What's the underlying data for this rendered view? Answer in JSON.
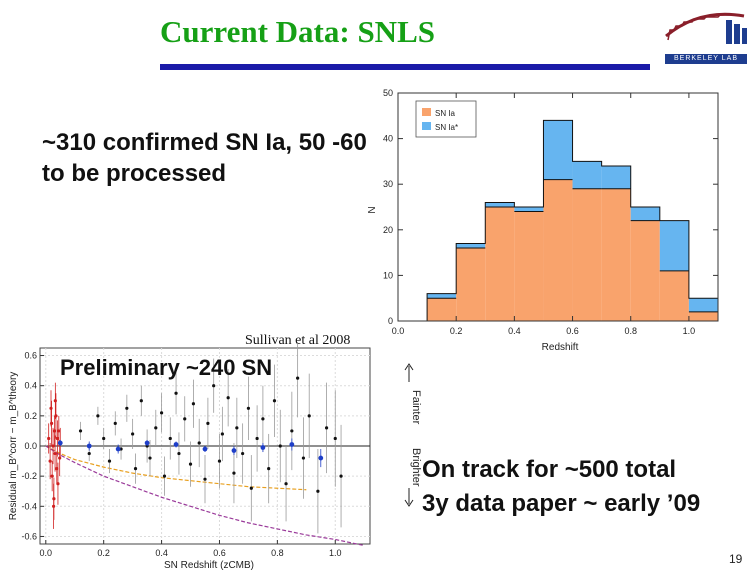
{
  "slide": {
    "title": "Current Data: SNLS",
    "logo_text": "BERKELEY LAB",
    "bullet_1": "~310 confirmed SN Ia, 50 -60 to be processed",
    "citation": "Sullivan et al 2008",
    "preliminary": "Preliminary ~240 SN",
    "bullet_2_line1": "On track for ~500 total",
    "bullet_2_line2": "3y data paper ~ early ’09",
    "page_number": "19",
    "fainter_label": "Fainter",
    "brighter_label": "Brighter"
  },
  "chart_data": [
    {
      "type": "histogram",
      "xlabel": "Redshift",
      "ylabel": "N",
      "xlim": [
        0.0,
        1.1
      ],
      "ylim": [
        0,
        50
      ],
      "xticks": [
        0.0,
        0.2,
        0.4,
        0.6,
        0.8,
        1.0
      ],
      "yticks": [
        0,
        10,
        20,
        30,
        40,
        50
      ],
      "bin_width": 0.1,
      "bin_starts": [
        0.0,
        0.1,
        0.2,
        0.3,
        0.4,
        0.5,
        0.6,
        0.7,
        0.8,
        0.9,
        1.0
      ],
      "legend_position": "top-left",
      "colors": {
        "SN Ia": "#f9a36c",
        "SN Ia*": "#66b5f0"
      },
      "series": [
        {
          "name": "SN Ia",
          "values": [
            0,
            5,
            16,
            25,
            24,
            31,
            29,
            29,
            22,
            11,
            2
          ]
        },
        {
          "name": "SN Ia*",
          "values": [
            0,
            1,
            1,
            1,
            1,
            13,
            6,
            5,
            3,
            11,
            3
          ]
        }
      ]
    },
    {
      "type": "scatter",
      "xlabel": "SN Redshift (zCMB)",
      "ylabel": "Residual m_B^corr − m_B^theory",
      "xlim": [
        -0.02,
        1.12
      ],
      "ylim": [
        -0.65,
        0.65
      ],
      "xticks": [
        0.0,
        0.2,
        0.4,
        0.6,
        0.8,
        1.0
      ],
      "yticks": [
        -0.6,
        -0.4,
        -0.2,
        0.0,
        0.2,
        0.4,
        0.6
      ],
      "grid": true,
      "colors": {
        "snls": "#111111",
        "low_z": "#d02020",
        "binned": "#1e3ec8",
        "curve_orange": "#e8a020",
        "curve_purple": "#9a3a9a"
      },
      "binned_points": {
        "x": [
          0.05,
          0.15,
          0.25,
          0.35,
          0.45,
          0.55,
          0.65,
          0.75,
          0.85,
          0.95
        ],
        "y": [
          0.02,
          0.0,
          -0.02,
          0.02,
          0.01,
          -0.02,
          -0.03,
          -0.01,
          0.01,
          -0.08
        ],
        "err": [
          0.02,
          0.03,
          0.03,
          0.02,
          0.02,
          0.02,
          0.03,
          0.03,
          0.04,
          0.06
        ]
      },
      "snls_points": {
        "x": [
          0.12,
          0.15,
          0.18,
          0.2,
          0.22,
          0.24,
          0.26,
          0.28,
          0.3,
          0.31,
          0.33,
          0.35,
          0.36,
          0.38,
          0.4,
          0.41,
          0.43,
          0.45,
          0.46,
          0.48,
          0.5,
          0.51,
          0.53,
          0.55,
          0.56,
          0.58,
          0.6,
          0.61,
          0.63,
          0.65,
          0.66,
          0.68,
          0.7,
          0.71,
          0.73,
          0.75,
          0.77,
          0.79,
          0.81,
          0.83,
          0.85,
          0.87,
          0.89,
          0.91,
          0.94,
          0.97,
          1.0,
          1.02
        ],
        "y": [
          0.1,
          -0.05,
          0.2,
          0.05,
          -0.1,
          0.15,
          -0.02,
          0.25,
          0.08,
          -0.15,
          0.3,
          0.0,
          -0.08,
          0.12,
          0.22,
          -0.2,
          0.05,
          0.35,
          -0.05,
          0.18,
          -0.12,
          0.28,
          0.02,
          -0.22,
          0.15,
          0.4,
          -0.1,
          0.08,
          0.32,
          -0.18,
          0.12,
          -0.05,
          0.25,
          -0.28,
          0.05,
          0.18,
          -0.15,
          0.3,
          0.0,
          -0.25,
          0.1,
          0.45,
          -0.08,
          0.2,
          -0.3,
          0.12,
          0.05,
          -0.2
        ],
        "err": [
          0.06,
          0.05,
          0.06,
          0.07,
          0.08,
          0.08,
          0.07,
          0.09,
          0.1,
          0.1,
          0.1,
          0.11,
          0.12,
          0.12,
          0.13,
          0.13,
          0.14,
          0.14,
          0.14,
          0.15,
          0.15,
          0.16,
          0.16,
          0.16,
          0.17,
          0.18,
          0.18,
          0.18,
          0.19,
          0.2,
          0.2,
          0.2,
          0.21,
          0.22,
          0.22,
          0.22,
          0.23,
          0.24,
          0.24,
          0.25,
          0.26,
          0.26,
          0.27,
          0.28,
          0.28,
          0.3,
          0.32,
          0.34
        ]
      },
      "low_z_points": {
        "x": [
          0.01,
          0.015,
          0.02,
          0.022,
          0.025,
          0.028,
          0.03,
          0.032,
          0.035,
          0.038,
          0.04,
          0.042,
          0.045,
          0.048,
          0.05,
          0.018,
          0.027,
          0.033
        ],
        "y": [
          0.05,
          -0.1,
          0.15,
          -0.2,
          0.0,
          -0.35,
          0.1,
          -0.05,
          0.2,
          -0.15,
          0.05,
          -0.25,
          0.1,
          -0.08,
          0.02,
          0.25,
          -0.4,
          0.3
        ],
        "err": [
          0.1,
          0.12,
          0.15,
          0.1,
          0.12,
          0.14,
          0.1,
          0.12,
          0.15,
          0.1,
          0.12,
          0.14,
          0.1,
          0.12,
          0.1,
          0.12,
          0.15,
          0.12
        ]
      },
      "curves": [
        {
          "name": "orange",
          "x": [
            0.0,
            0.05,
            0.1,
            0.2,
            0.3,
            0.4,
            0.5,
            0.6,
            0.7,
            0.8,
            0.9
          ],
          "y": [
            0.0,
            -0.05,
            -0.09,
            -0.14,
            -0.18,
            -0.21,
            -0.23,
            -0.25,
            -0.27,
            -0.28,
            -0.29
          ]
        },
        {
          "name": "purple",
          "x": [
            0.0,
            0.05,
            0.1,
            0.2,
            0.3,
            0.4,
            0.5,
            0.6,
            0.7,
            0.8,
            0.9,
            1.0,
            1.1
          ],
          "y": [
            0.0,
            -0.06,
            -0.11,
            -0.2,
            -0.27,
            -0.34,
            -0.4,
            -0.46,
            -0.51,
            -0.55,
            -0.59,
            -0.62,
            -0.66
          ]
        }
      ]
    }
  ]
}
